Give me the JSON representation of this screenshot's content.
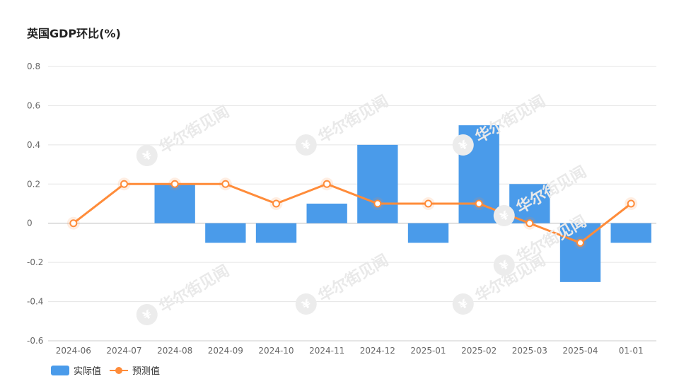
{
  "title": "英国GDP环比(%)",
  "watermark": {
    "text": "华尔街见闻",
    "logo_glyph": "¥"
  },
  "colors": {
    "bar": "#4a9bea",
    "line": "#ff8c3a",
    "grid": "#e5e5e5",
    "axis_text": "#666666"
  },
  "chart_data": {
    "type": "bar",
    "categories": [
      "2024-06",
      "2024-07",
      "2024-08",
      "2024-09",
      "2024-10",
      "2024-11",
      "2024-12",
      "2025-01",
      "2025-02",
      "2025-03",
      "2025-04",
      "01-01"
    ],
    "series": [
      {
        "name": "实际值",
        "type": "bar",
        "values": [
          null,
          null,
          0.2,
          -0.1,
          -0.1,
          0.1,
          0.4,
          -0.1,
          0.5,
          0.2,
          -0.3,
          -0.1
        ]
      },
      {
        "name": "预测值",
        "type": "line",
        "values": [
          0,
          0.2,
          0.2,
          0.2,
          0.1,
          0.2,
          0.1,
          0.1,
          0.1,
          0,
          -0.1,
          0.1
        ]
      }
    ],
    "ylim": [
      -0.6,
      0.8
    ],
    "yticks": [
      "0.8",
      "0.6",
      "0.4",
      "0.2",
      "0",
      "-0.2",
      "-0.4",
      "-0.6"
    ],
    "ytick_values": [
      0.8,
      0.6,
      0.4,
      0.2,
      0,
      -0.2,
      -0.4,
      -0.6
    ],
    "grid": true,
    "legend": "bottom-left"
  }
}
